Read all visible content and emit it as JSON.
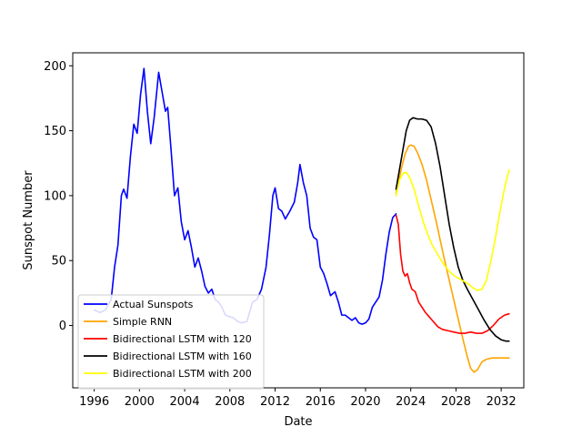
{
  "chart_data": {
    "type": "line",
    "title": "",
    "xlabel": "Date",
    "ylabel": "Sunspot Number",
    "xlim": [
      1994.1,
      2034.0
    ],
    "ylim": [
      -48,
      210
    ],
    "x_ticks": [
      1996,
      2000,
      2004,
      2008,
      2012,
      2016,
      2020,
      2024,
      2028,
      2032
    ],
    "x_tick_labels": [
      "1996",
      "2000",
      "2004",
      "2008",
      "2012",
      "2016",
      "2020",
      "2024",
      "2028",
      "2032"
    ],
    "y_ticks": [
      0,
      50,
      100,
      150,
      200
    ],
    "y_tick_labels": [
      "0",
      "50",
      "100",
      "150",
      "200"
    ],
    "grid": false,
    "legend_placement": "lower-left",
    "series": [
      {
        "name": "Actual Sunspots",
        "color": "#0000ff",
        "points": [
          [
            1996.0,
            12
          ],
          [
            1996.5,
            10
          ],
          [
            1997.0,
            12
          ],
          [
            1997.5,
            20
          ],
          [
            1997.8,
            45
          ],
          [
            1998.1,
            62
          ],
          [
            1998.4,
            100
          ],
          [
            1998.6,
            105
          ],
          [
            1998.9,
            98
          ],
          [
            1999.2,
            130
          ],
          [
            1999.5,
            155
          ],
          [
            1999.8,
            148
          ],
          [
            2000.1,
            178
          ],
          [
            2000.4,
            198
          ],
          [
            2000.7,
            165
          ],
          [
            2001.0,
            140
          ],
          [
            2001.3,
            160
          ],
          [
            2001.7,
            195
          ],
          [
            2002.0,
            180
          ],
          [
            2002.3,
            165
          ],
          [
            2002.5,
            168
          ],
          [
            2002.8,
            135
          ],
          [
            2003.1,
            100
          ],
          [
            2003.4,
            106
          ],
          [
            2003.7,
            80
          ],
          [
            2004.0,
            66
          ],
          [
            2004.3,
            73
          ],
          [
            2004.6,
            60
          ],
          [
            2004.9,
            45
          ],
          [
            2005.2,
            52
          ],
          [
            2005.5,
            42
          ],
          [
            2005.8,
            30
          ],
          [
            2006.1,
            25
          ],
          [
            2006.4,
            28
          ],
          [
            2006.7,
            20
          ],
          [
            2007.0,
            18
          ],
          [
            2007.3,
            14
          ],
          [
            2007.6,
            8
          ],
          [
            2007.9,
            7
          ],
          [
            2008.3,
            6
          ],
          [
            2008.7,
            3
          ],
          [
            2009.0,
            2
          ],
          [
            2009.5,
            3
          ],
          [
            2010.0,
            18
          ],
          [
            2010.4,
            20
          ],
          [
            2010.8,
            28
          ],
          [
            2011.2,
            45
          ],
          [
            2011.5,
            70
          ],
          [
            2011.8,
            100
          ],
          [
            2012.0,
            106
          ],
          [
            2012.3,
            90
          ],
          [
            2012.6,
            88
          ],
          [
            2012.9,
            82
          ],
          [
            2013.3,
            88
          ],
          [
            2013.7,
            95
          ],
          [
            2014.0,
            110
          ],
          [
            2014.2,
            124
          ],
          [
            2014.5,
            110
          ],
          [
            2014.8,
            100
          ],
          [
            2015.1,
            75
          ],
          [
            2015.4,
            68
          ],
          [
            2015.7,
            66
          ],
          [
            2016.0,
            45
          ],
          [
            2016.3,
            40
          ],
          [
            2016.6,
            32
          ],
          [
            2016.9,
            23
          ],
          [
            2017.3,
            26
          ],
          [
            2017.6,
            18
          ],
          [
            2017.9,
            8
          ],
          [
            2018.2,
            8
          ],
          [
            2018.5,
            6
          ],
          [
            2018.8,
            4
          ],
          [
            2019.1,
            6
          ],
          [
            2019.4,
            2
          ],
          [
            2019.7,
            1
          ],
          [
            2020.0,
            2
          ],
          [
            2020.3,
            5
          ],
          [
            2020.6,
            14
          ],
          [
            2020.9,
            18
          ],
          [
            2021.2,
            22
          ],
          [
            2021.5,
            35
          ],
          [
            2021.8,
            55
          ],
          [
            2022.1,
            72
          ],
          [
            2022.4,
            83
          ],
          [
            2022.7,
            86
          ]
        ]
      },
      {
        "name": "Simple RNN",
        "color": "#ffa500",
        "points": [
          [
            2022.7,
            102
          ],
          [
            2022.9,
            110
          ],
          [
            2023.2,
            122
          ],
          [
            2023.5,
            132
          ],
          [
            2023.8,
            138
          ],
          [
            2024.0,
            139
          ],
          [
            2024.3,
            138
          ],
          [
            2024.6,
            133
          ],
          [
            2025.0,
            124
          ],
          [
            2025.4,
            112
          ],
          [
            2025.8,
            97
          ],
          [
            2026.2,
            82
          ],
          [
            2026.6,
            66
          ],
          [
            2027.0,
            50
          ],
          [
            2027.4,
            35
          ],
          [
            2027.8,
            20
          ],
          [
            2028.2,
            5
          ],
          [
            2028.6,
            -10
          ],
          [
            2029.0,
            -24
          ],
          [
            2029.3,
            -33
          ],
          [
            2029.6,
            -36
          ],
          [
            2029.9,
            -34
          ],
          [
            2030.3,
            -28
          ],
          [
            2030.7,
            -26
          ],
          [
            2031.2,
            -25
          ],
          [
            2031.8,
            -25
          ],
          [
            2032.3,
            -25
          ],
          [
            2032.7,
            -25
          ]
        ]
      },
      {
        "name": "Bidirectional LSTM with 120",
        "color": "#ff0000",
        "points": [
          [
            2022.7,
            85
          ],
          [
            2022.9,
            78
          ],
          [
            2023.1,
            55
          ],
          [
            2023.3,
            42
          ],
          [
            2023.5,
            38
          ],
          [
            2023.7,
            40
          ],
          [
            2023.9,
            33
          ],
          [
            2024.1,
            28
          ],
          [
            2024.4,
            26
          ],
          [
            2024.7,
            18
          ],
          [
            2025.0,
            14
          ],
          [
            2025.3,
            10
          ],
          [
            2025.6,
            7
          ],
          [
            2026.0,
            3
          ],
          [
            2026.4,
            -1
          ],
          [
            2026.8,
            -3
          ],
          [
            2027.3,
            -4
          ],
          [
            2027.8,
            -5
          ],
          [
            2028.3,
            -6
          ],
          [
            2028.8,
            -6
          ],
          [
            2029.3,
            -5
          ],
          [
            2029.8,
            -6
          ],
          [
            2030.3,
            -6
          ],
          [
            2030.8,
            -4
          ],
          [
            2031.3,
            0
          ],
          [
            2031.8,
            5
          ],
          [
            2032.3,
            8
          ],
          [
            2032.7,
            9
          ]
        ]
      },
      {
        "name": "Bidirectional LSTM with 160",
        "color": "#000000",
        "points": [
          [
            2022.7,
            105
          ],
          [
            2023.0,
            120
          ],
          [
            2023.3,
            135
          ],
          [
            2023.6,
            150
          ],
          [
            2023.9,
            158
          ],
          [
            2024.2,
            160
          ],
          [
            2024.6,
            159
          ],
          [
            2025.0,
            159
          ],
          [
            2025.4,
            158
          ],
          [
            2025.8,
            153
          ],
          [
            2026.2,
            140
          ],
          [
            2026.6,
            122
          ],
          [
            2027.0,
            100
          ],
          [
            2027.4,
            78
          ],
          [
            2027.8,
            60
          ],
          [
            2028.2,
            45
          ],
          [
            2028.6,
            35
          ],
          [
            2029.0,
            28
          ],
          [
            2029.5,
            20
          ],
          [
            2030.0,
            12
          ],
          [
            2030.5,
            4
          ],
          [
            2031.0,
            -3
          ],
          [
            2031.5,
            -8
          ],
          [
            2032.0,
            -11
          ],
          [
            2032.4,
            -12
          ],
          [
            2032.7,
            -12
          ]
        ]
      },
      {
        "name": "Bidirectional LSTM with 200",
        "color": "#ffff00",
        "points": [
          [
            2022.7,
            100
          ],
          [
            2023.0,
            112
          ],
          [
            2023.3,
            117
          ],
          [
            2023.6,
            118
          ],
          [
            2023.9,
            114
          ],
          [
            2024.3,
            105
          ],
          [
            2024.7,
            92
          ],
          [
            2025.1,
            80
          ],
          [
            2025.5,
            70
          ],
          [
            2025.9,
            62
          ],
          [
            2026.3,
            56
          ],
          [
            2026.7,
            50
          ],
          [
            2027.1,
            45
          ],
          [
            2027.5,
            41
          ],
          [
            2027.9,
            38
          ],
          [
            2028.3,
            36
          ],
          [
            2028.7,
            34
          ],
          [
            2029.1,
            32
          ],
          [
            2029.5,
            29
          ],
          [
            2029.9,
            27
          ],
          [
            2030.3,
            28
          ],
          [
            2030.7,
            35
          ],
          [
            2031.1,
            50
          ],
          [
            2031.5,
            68
          ],
          [
            2031.9,
            88
          ],
          [
            2032.3,
            106
          ],
          [
            2032.7,
            120
          ]
        ]
      }
    ]
  }
}
